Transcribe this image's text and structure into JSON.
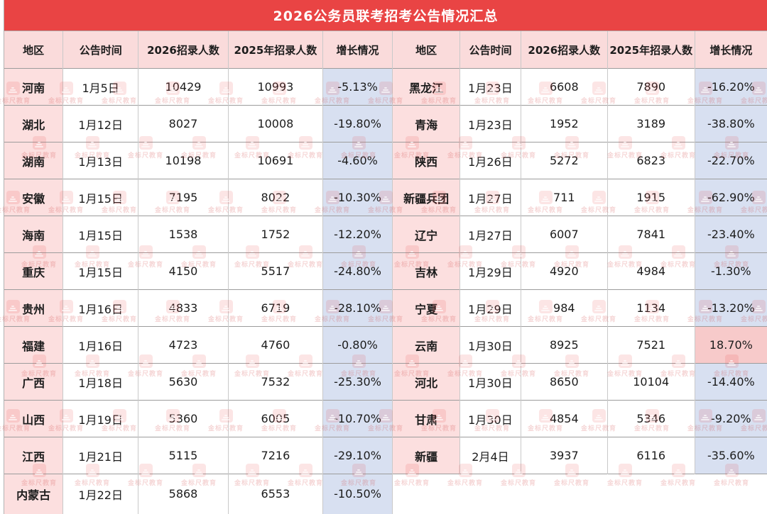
{
  "title": "2026公务员联考招考公告情况汇总",
  "watermark": {
    "text": "金标尺教育"
  },
  "colors": {
    "title_bg": "#e94444",
    "title_text": "#ffffff",
    "header_bg": "#fadbdb",
    "region_bg": "#fcdfdf",
    "growth_negative_bg": "#d8e0f1",
    "growth_positive_bg": "#f7caca",
    "text": "#1c1c1c"
  },
  "chart_data": {
    "type": "table",
    "title": "2026公务员联考招考公告情况汇总",
    "columns": [
      "地区",
      "公告时间",
      "2026招录人数",
      "2025年招录人数",
      "增长情况"
    ],
    "left_rows": [
      [
        "河南",
        "1月5日",
        "10429",
        "10993",
        "-5.13%"
      ],
      [
        "湖北",
        "1月12日",
        "8027",
        "10008",
        "-19.80%"
      ],
      [
        "湖南",
        "1月13日",
        "10198",
        "10691",
        "-4.60%"
      ],
      [
        "安徽",
        "1月15日",
        "7195",
        "8022",
        "-10.30%"
      ],
      [
        "海南",
        "1月15日",
        "1538",
        "1752",
        "-12.20%"
      ],
      [
        "重庆",
        "1月15日",
        "4150",
        "5517",
        "-24.80%"
      ],
      [
        "贵州",
        "1月16日",
        "4833",
        "6719",
        "-28.10%"
      ],
      [
        "福建",
        "1月16日",
        "4723",
        "4760",
        "-0.80%"
      ],
      [
        "广西",
        "1月18日",
        "5630",
        "7532",
        "-25.30%"
      ],
      [
        "山西",
        "1月19日",
        "5360",
        "6005",
        "-10.70%"
      ],
      [
        "江西",
        "1月21日",
        "5115",
        "7216",
        "-29.10%"
      ],
      [
        "内蒙古",
        "1月22日",
        "5868",
        "6553",
        "-10.50%"
      ]
    ],
    "right_rows": [
      [
        "黑龙江",
        "1月23日",
        "6608",
        "7890",
        "-16.20%"
      ],
      [
        "青海",
        "1月23日",
        "1952",
        "3189",
        "-38.80%"
      ],
      [
        "陕西",
        "1月26日",
        "5272",
        "6823",
        "-22.70%"
      ],
      [
        "新疆兵团",
        "1月27日",
        "711",
        "1915",
        "-62.90%"
      ],
      [
        "辽宁",
        "1月27日",
        "6007",
        "7841",
        "-23.40%"
      ],
      [
        "吉林",
        "1月29日",
        "4920",
        "4984",
        "-1.30%"
      ],
      [
        "宁夏",
        "1月29日",
        "984",
        "1134",
        "-13.20%"
      ],
      [
        "云南",
        "1月30日",
        "8925",
        "7521",
        "18.70%"
      ],
      [
        "河北",
        "1月30日",
        "8650",
        "10104",
        "-14.40%"
      ],
      [
        "甘肃",
        "1月30日",
        "4854",
        "5346",
        "-9.20%"
      ],
      [
        "新疆",
        "2月4日",
        "3937",
        "6116",
        "-35.60%"
      ]
    ]
  }
}
